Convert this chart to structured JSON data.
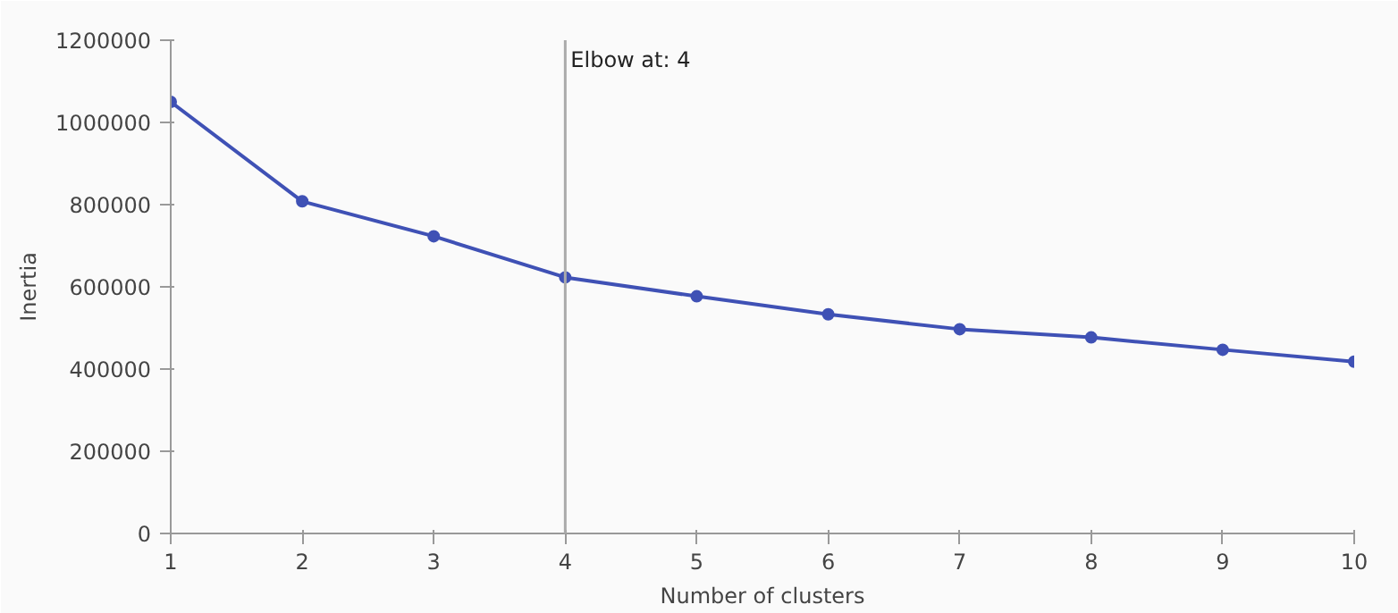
{
  "chart_data": {
    "type": "line",
    "xlabel": "Number of clusters",
    "ylabel": "Inertia",
    "x": [
      1,
      2,
      3,
      4,
      5,
      6,
      7,
      8,
      9,
      10
    ],
    "series": [
      {
        "color": "#3f51b5",
        "values": [
          1050000,
          808000,
          723000,
          623000,
          577000,
          533000,
          497000,
          477000,
          447000,
          418000
        ]
      }
    ],
    "xlim": [
      1,
      10
    ],
    "xticks": [
      1,
      2,
      3,
      4,
      5,
      6,
      7,
      8,
      9,
      10
    ],
    "ylim": [
      0,
      1200000
    ],
    "yticks": [
      0,
      200000,
      400000,
      600000,
      800000,
      1000000,
      1200000
    ],
    "ref_lines": [
      {
        "axis": "x",
        "value": 4,
        "label": "Elbow at: 4",
        "color": "#aaaaaa"
      }
    ],
    "grid": false,
    "marker": "circle",
    "line_style": "solid"
  }
}
